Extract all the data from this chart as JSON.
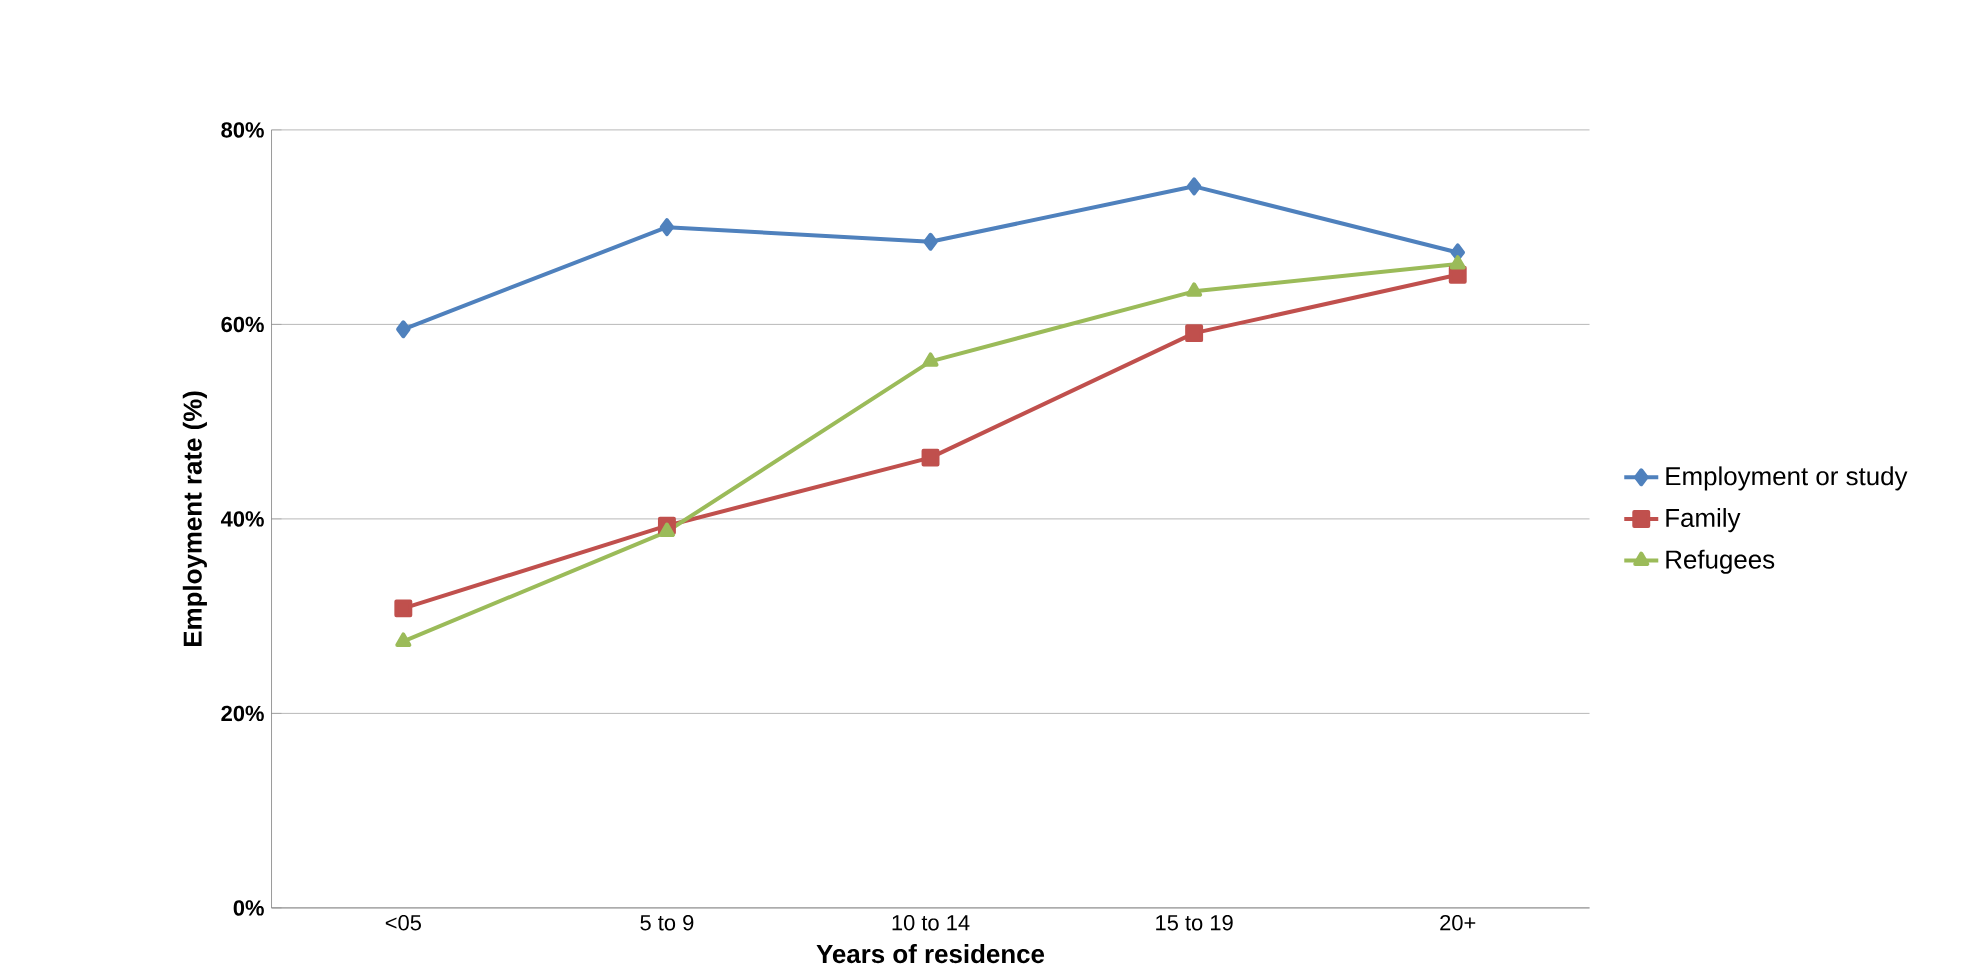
{
  "chart_data": {
    "type": "line",
    "xlabel": "Years of residence",
    "ylabel": "Employment rate (%)",
    "categories": [
      "<05",
      "5 to 9",
      "10 to 14",
      "15 to 19",
      "20+"
    ],
    "ylim": [
      0,
      80
    ],
    "yticks": [
      {
        "value": 0,
        "label": "0%"
      },
      {
        "value": 20,
        "label": "20%"
      },
      {
        "value": 40,
        "label": "40%"
      },
      {
        "value": 60,
        "label": "60%"
      },
      {
        "value": 80,
        "label": "80%"
      }
    ],
    "grid": "y",
    "legend": "right",
    "line_style": "solid",
    "series": [
      {
        "name": "Employment or study",
        "color": "#4f81bd",
        "marker": "diamond",
        "values": [
          59.5,
          70.0,
          68.5,
          74.2,
          67.4
        ]
      },
      {
        "name": "Family",
        "color": "#c0504d",
        "marker": "square",
        "values": [
          30.8,
          39.3,
          46.3,
          59.1,
          65.1
        ]
      },
      {
        "name": "Refugees",
        "color": "#9bbb59",
        "marker": "triangle",
        "values": [
          27.4,
          38.7,
          56.2,
          63.4,
          66.2
        ]
      }
    ]
  }
}
